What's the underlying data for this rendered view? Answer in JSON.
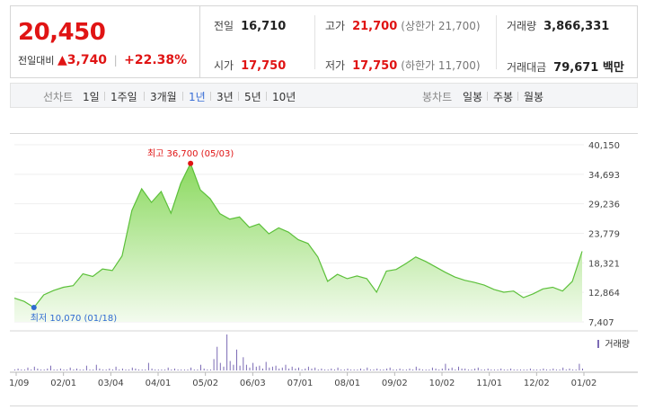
{
  "quote": {
    "price": "20,450",
    "change_label": "전일대비",
    "change_arrow": "▲",
    "change_amount": "3,740",
    "change_percent": "+22.38%",
    "up_color": "#e01414",
    "stats": {
      "prev_close": {
        "label": "전일",
        "value": "16,710"
      },
      "high": {
        "label": "고가",
        "value": "21,700",
        "sub": "(상한가 21,700)"
      },
      "volume": {
        "label": "거래량",
        "value": "3,866,331"
      },
      "open": {
        "label": "시가",
        "value": "17,750"
      },
      "low": {
        "label": "저가",
        "value": "17,750",
        "sub": "(하한가 11,700)"
      },
      "trade_amount": {
        "label": "거래대금",
        "value": "79,671 백만"
      }
    }
  },
  "toolbar": {
    "line_label": "선차트",
    "periods": [
      "1일",
      "1주일",
      "3개월",
      "1년",
      "3년",
      "5년",
      "10년"
    ],
    "active_period": "1년",
    "candle_label": "봉차트",
    "candles": [
      "일봉",
      "주봉",
      "월봉"
    ],
    "active_color": "#3a6fd6"
  },
  "chart_data": {
    "type": "area",
    "x": [
      "01/09",
      "01/13",
      "01/18",
      "01/25",
      "02/01",
      "02/05",
      "02/12",
      "02/19",
      "02/26",
      "03/04",
      "03/11",
      "03/18",
      "03/25",
      "04/01",
      "04/08",
      "04/15",
      "04/22",
      "04/29",
      "05/03",
      "05/06",
      "05/13",
      "05/20",
      "05/27",
      "06/03",
      "06/10",
      "06/17",
      "06/24",
      "07/01",
      "07/08",
      "07/15",
      "07/22",
      "07/29",
      "08/01",
      "08/08",
      "08/15",
      "08/22",
      "08/29",
      "09/02",
      "09/09",
      "09/16",
      "09/23",
      "09/30",
      "10/02",
      "10/09",
      "10/16",
      "10/23",
      "10/30",
      "11/01",
      "11/08",
      "11/15",
      "11/22",
      "11/29",
      "12/02",
      "12/09",
      "12/16",
      "12/23",
      "12/30",
      "01/02",
      "01/06"
    ],
    "y": [
      11800,
      11200,
      10070,
      12400,
      13200,
      13800,
      14100,
      16300,
      15800,
      17200,
      16900,
      19600,
      28000,
      32000,
      29500,
      31500,
      27500,
      33000,
      36700,
      31800,
      30200,
      27400,
      26400,
      26800,
      24900,
      25500,
      23700,
      24800,
      24000,
      22600,
      21900,
      19400,
      14900,
      16200,
      15400,
      15900,
      15400,
      12900,
      16800,
      17100,
      18200,
      19400,
      18600,
      17600,
      16600,
      15700,
      15100,
      14700,
      14200,
      13400,
      12900,
      13100,
      11900,
      12600,
      13500,
      13800,
      13100,
      14900,
      20450
    ],
    "ylim": [
      7407,
      40150
    ],
    "yticks": [
      "40,150",
      "34,693",
      "29,236",
      "23,779",
      "18,321",
      "12,864",
      "7,407"
    ],
    "xticks": [
      "01/09",
      "02/01",
      "03/04",
      "04/01",
      "05/02",
      "06/03",
      "07/01",
      "08/01",
      "09/02",
      "10/02",
      "11/01",
      "12/02",
      "01/02"
    ],
    "annotations": {
      "max": {
        "label": "최고 36,700 (05/03)",
        "date": "05/03",
        "value": 36700
      },
      "min": {
        "label": "최저 10,070 (01/18)",
        "date": "01/18",
        "value": 10070
      }
    },
    "volume": {
      "legend": "거래량",
      "values": [
        1,
        2,
        1,
        1,
        3,
        1,
        4,
        2,
        1,
        1,
        2,
        5,
        1,
        1,
        2,
        1,
        1,
        3,
        1,
        2,
        1,
        1,
        5,
        1,
        1,
        6,
        2,
        1,
        1,
        2,
        1,
        4,
        1,
        2,
        1,
        1,
        3,
        2,
        1,
        1,
        1,
        8,
        2,
        1,
        1,
        1,
        1,
        3,
        1,
        2,
        1,
        1,
        1,
        1,
        3,
        1,
        1,
        6,
        2,
        1,
        1,
        12,
        25,
        8,
        4,
        38,
        10,
        6,
        22,
        5,
        14,
        6,
        3,
        8,
        4,
        5,
        2,
        9,
        3,
        4,
        5,
        2,
        3,
        6,
        2,
        4,
        2,
        3,
        1,
        2,
        4,
        2,
        3,
        1,
        2,
        1,
        1,
        2,
        1,
        3,
        1,
        1,
        2,
        1,
        1,
        1,
        2,
        1,
        3,
        1,
        1,
        2,
        1,
        1,
        2,
        3,
        1,
        1,
        2,
        1,
        1,
        2,
        1,
        4,
        2,
        1,
        1,
        1,
        3,
        2,
        1,
        2,
        7,
        2,
        3,
        1,
        4,
        2,
        2,
        1,
        1,
        2,
        3,
        1,
        1,
        2,
        1,
        1,
        1,
        2,
        1,
        1,
        2,
        1,
        1,
        1,
        1,
        1,
        2,
        1,
        1,
        1,
        2,
        1,
        1,
        2,
        1,
        1,
        3,
        1,
        2,
        1,
        1,
        7,
        2
      ]
    },
    "line_color": "#5cc03a",
    "fill_top": "#8ad95e",
    "fill_bottom": "#f3fbee",
    "max_color": "#e01414",
    "min_color": "#2f6bd1"
  }
}
